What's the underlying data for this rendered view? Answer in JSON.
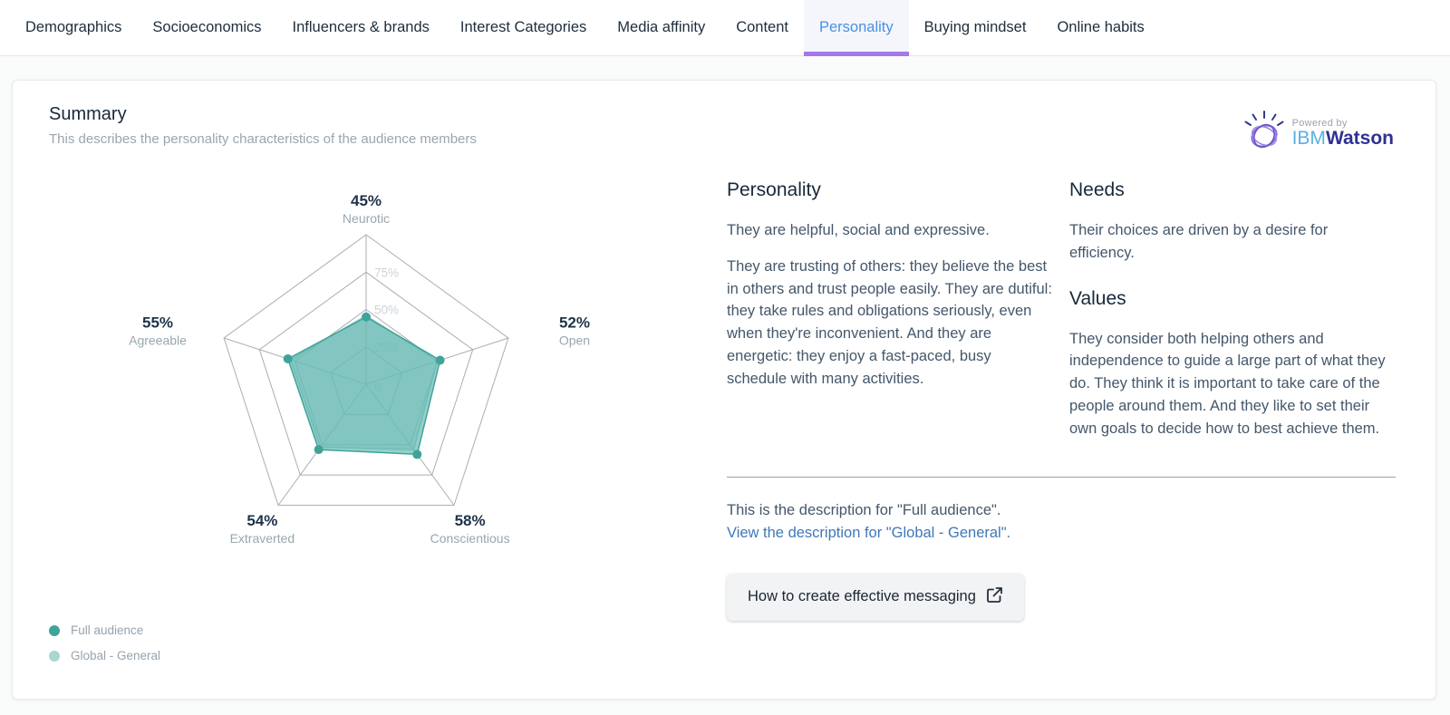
{
  "ui_colors": {
    "accent_purple": "#a578ea",
    "active_blue": "#4a90e2",
    "series1": "#3fa39a",
    "series2": "#a9d6d2",
    "link_blue": "#3f78b7"
  },
  "tabs": {
    "active_index": 6,
    "items": [
      {
        "label": "Demographics"
      },
      {
        "label": "Socioeconomics"
      },
      {
        "label": "Influencers & brands"
      },
      {
        "label": "Interest Categories"
      },
      {
        "label": "Media affinity"
      },
      {
        "label": "Content"
      },
      {
        "label": "Personality"
      },
      {
        "label": "Buying mindset"
      },
      {
        "label": "Online habits"
      }
    ]
  },
  "summary": {
    "title": "Summary",
    "subtitle": "This describes the personality characteristics of the audience members"
  },
  "watson": {
    "powered_by": "Powered by",
    "ibm": "IBM",
    "watson": "Watson"
  },
  "chart_data": {
    "type": "radar",
    "max": 100,
    "categories": [
      "Neurotic",
      "Open",
      "Conscientious",
      "Extraverted",
      "Agreeable"
    ],
    "axis_value_labels": [
      "45%",
      "52%",
      "58%",
      "54%",
      "55%"
    ],
    "ring_fractions": [
      1,
      0.75,
      0.5,
      0.25
    ],
    "ring_ticks": [
      {
        "label": "75%",
        "f": 0.75
      },
      {
        "label": "50%",
        "f": 0.5
      },
      {
        "label": "25%",
        "f": 0.25
      },
      {
        "label": "0",
        "f": 0
      }
    ],
    "series": [
      {
        "name": "Full audience",
        "values": [
          45,
          52,
          58,
          54,
          55
        ],
        "color": "#3fa39a",
        "fill": "rgba(84,178,170,0.62)",
        "dots": true
      },
      {
        "name": "Global - General",
        "values": [
          46,
          50,
          54,
          52,
          53
        ],
        "color": "#9fd0cb",
        "fill": "rgba(169,214,210,0.55)",
        "dots": false
      }
    ],
    "title": "",
    "legend_position": "bottom-left",
    "grid": true
  },
  "legend": {
    "items": [
      {
        "label": "Full audience",
        "color": "#3fa39a"
      },
      {
        "label": "Global - General",
        "color": "#a9d6d2"
      }
    ]
  },
  "description": {
    "personality_heading": "Personality",
    "personality_p1": "They are helpful, social and expressive.",
    "personality_p2": "They are trusting of others: they believe the best in others and trust people easily. They are dutiful: they take rules and obligations seriously, even when they're inconvenient. And they are energetic: they enjoy a fast-paced, busy schedule with many activities.",
    "needs_heading": "Needs",
    "needs_text": "Their choices are driven by a desire for efficiency.",
    "values_heading": "Values",
    "values_text": "They consider both helping others and independence to guide a large part of what they do. They think it is important to take care of the people around them. And they like to set their own goals to decide how to best achieve them.",
    "note_line": "This is the description for \"Full audience\".",
    "link_line": "View the description for \"Global - General\".",
    "button_label": "How to create effective messaging"
  }
}
